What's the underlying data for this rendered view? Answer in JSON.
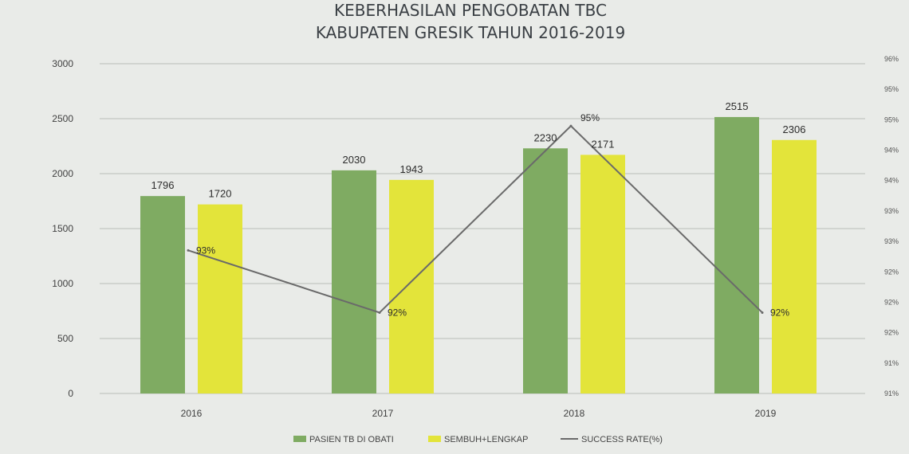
{
  "chart_data": {
    "type": "bar",
    "title": [
      "KEBERHASILAN PENGOBATAN TBC",
      "KABUPATEN GRESIK TAHUN 2016-2019"
    ],
    "categories": [
      "2016",
      "2017",
      "2018",
      "2019"
    ],
    "series": [
      {
        "name": "PASIEN TB DI OBATI",
        "type": "bar",
        "values": [
          1796,
          2030,
          2230,
          2515
        ],
        "color": "#7fab62"
      },
      {
        "name": "SEMBUH+LENGKAP",
        "type": "bar",
        "values": [
          1720,
          1943,
          2171,
          2306
        ],
        "color": "#e3e43a"
      },
      {
        "name": "SUCCESS RATE(%)",
        "type": "line",
        "axis": "right",
        "values": [
          93,
          92,
          95,
          92
        ],
        "labels": [
          "93%",
          "92%",
          "95%",
          "92%"
        ],
        "color": "#6a6a6a"
      }
    ],
    "ylim": [
      0,
      3000
    ],
    "yticks": [
      0,
      500,
      1000,
      1500,
      2000,
      2500,
      3000
    ],
    "y2ticks": [
      "91%",
      "91%",
      "92%",
      "92%",
      "92%",
      "93%",
      "93%",
      "94%",
      "94%",
      "95%",
      "95%",
      "96%"
    ],
    "y2lim": [
      90.7,
      96.0
    ],
    "legend": "bottom",
    "grid": true
  }
}
